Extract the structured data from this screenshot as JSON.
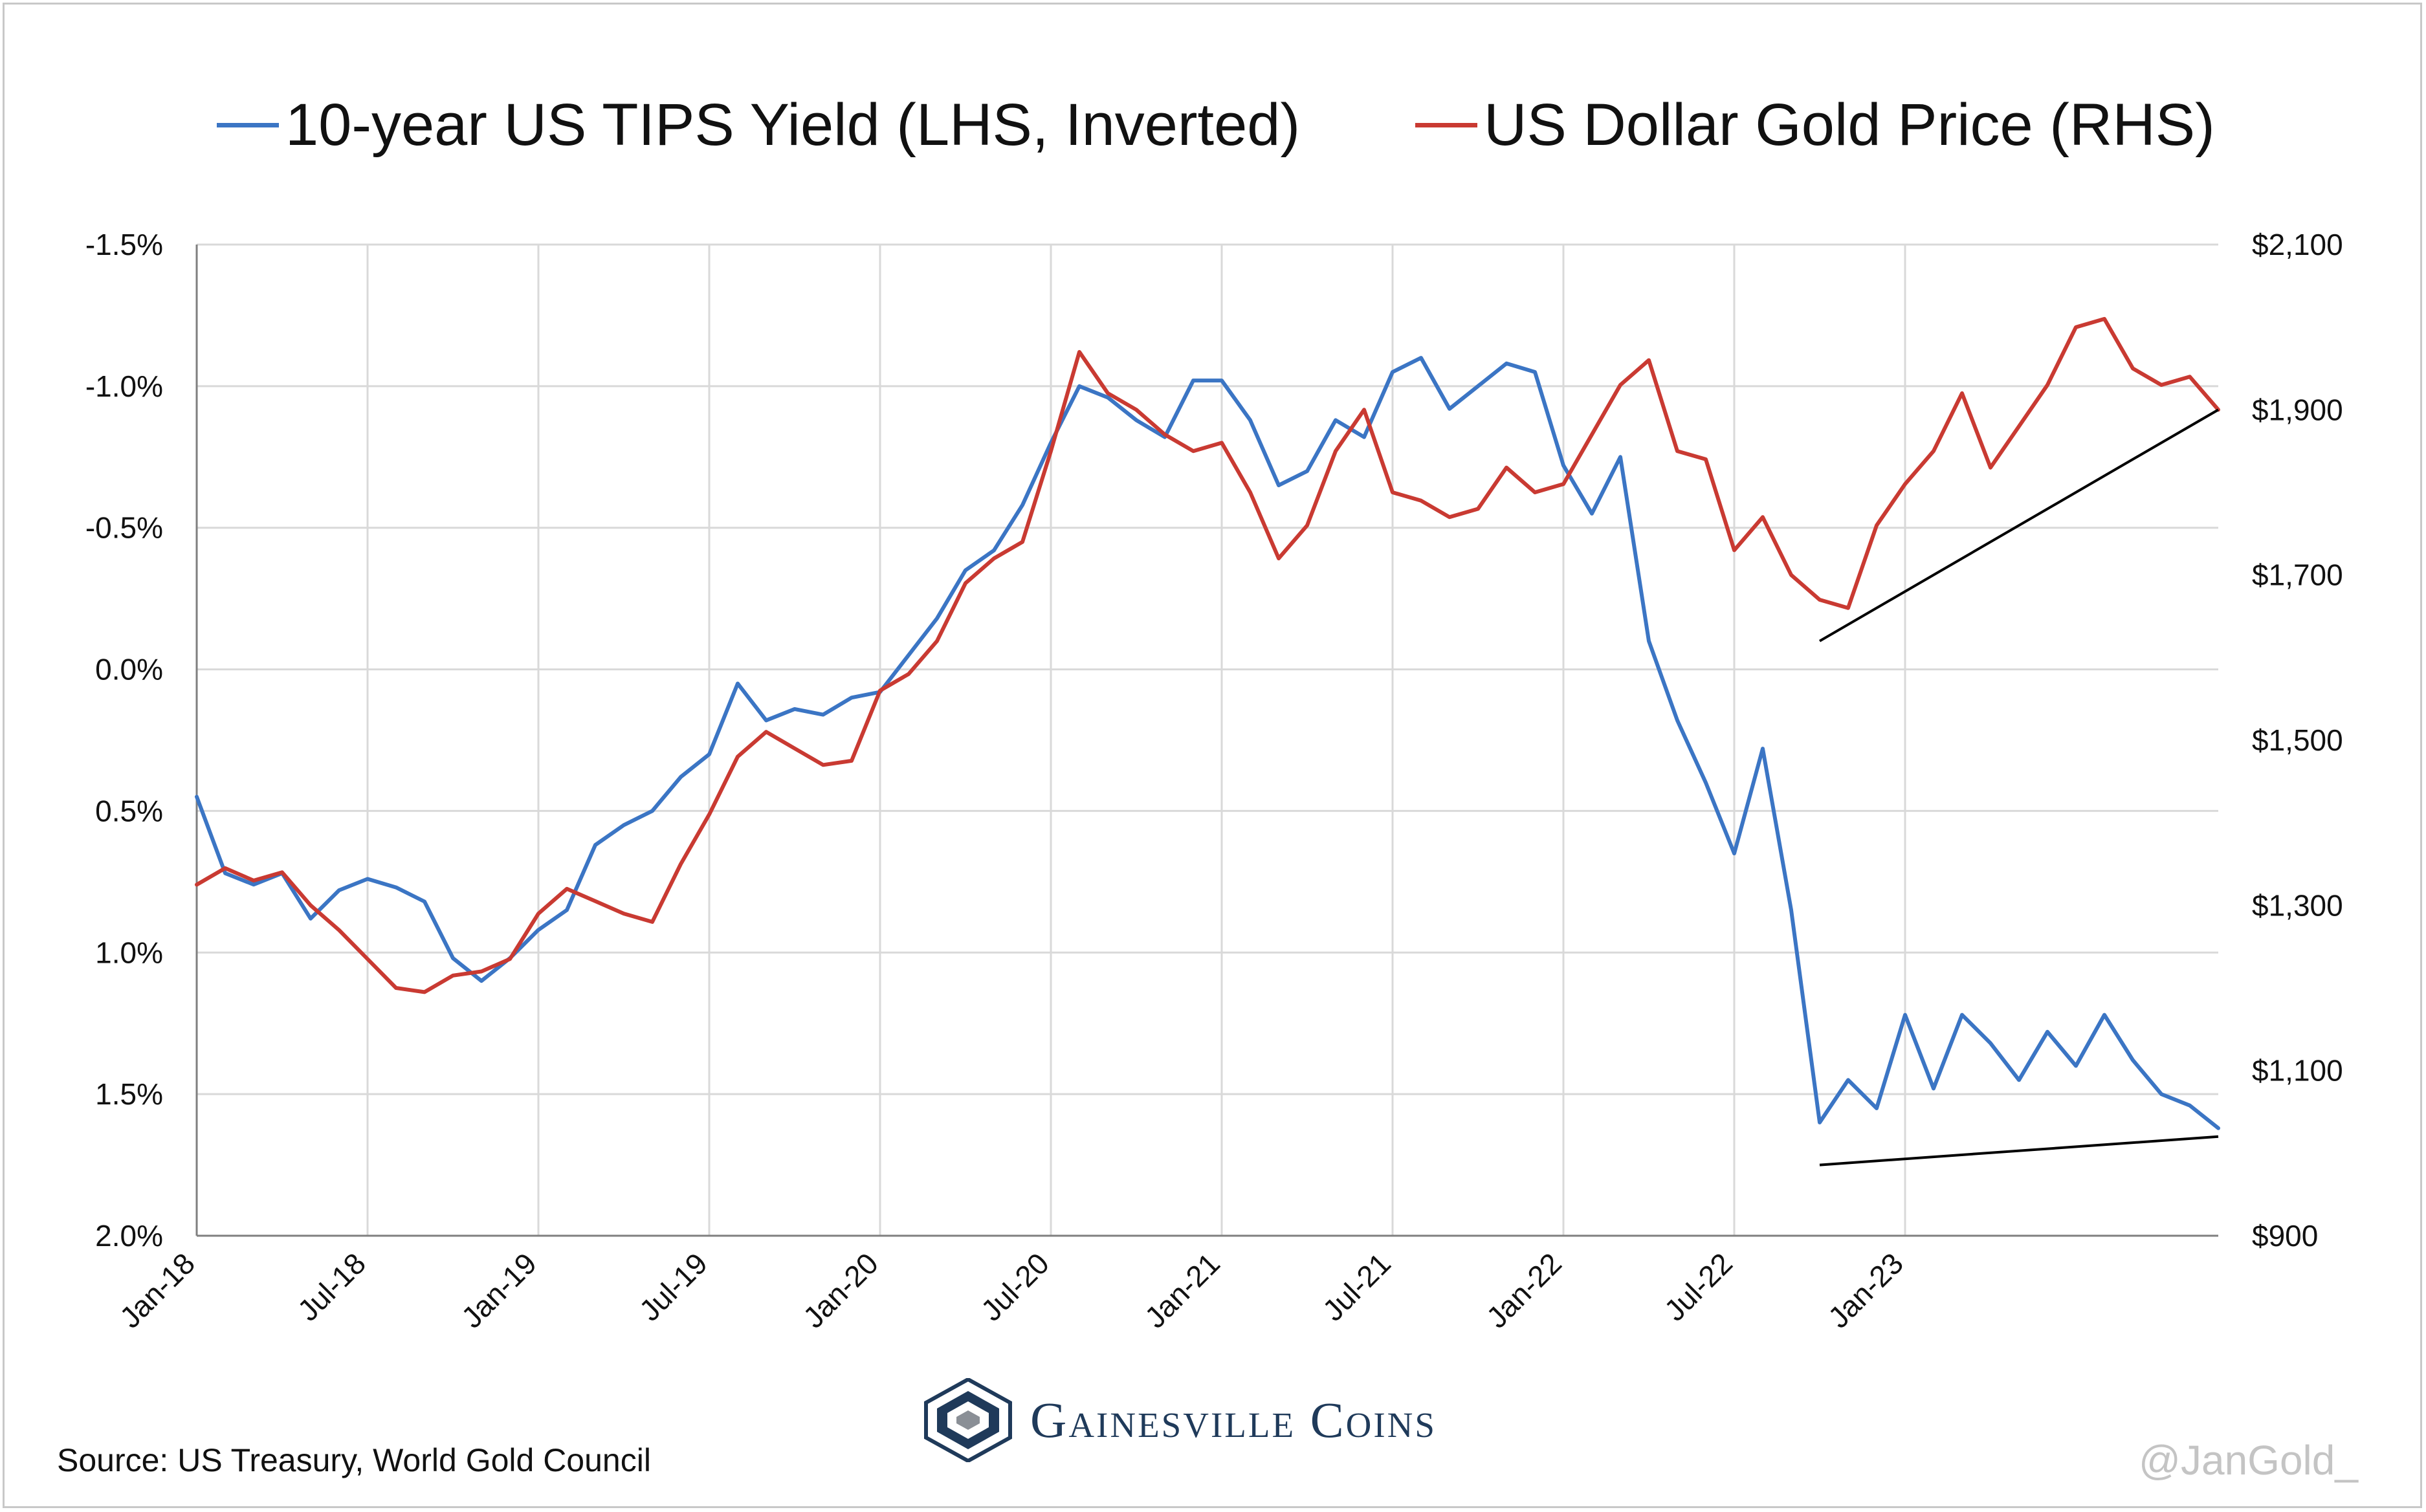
{
  "chart_data": {
    "type": "line",
    "legend": [
      {
        "label": "10-year US TIPS Yield (LHS, Inverted)",
        "color": "#3b75c4"
      },
      {
        "label": "US Dollar Gold Price (RHS)",
        "color": "#c93a32"
      }
    ],
    "left_axis": {
      "ticks": [
        "-1.5%",
        "-1.0%",
        "-0.5%",
        "0.0%",
        "0.5%",
        "1.0%",
        "1.5%",
        "2.0%"
      ],
      "range": [
        -1.5,
        2.0
      ],
      "inverted": true
    },
    "right_axis": {
      "ticks": [
        "$2,100",
        "$1,900",
        "$1,700",
        "$1,500",
        "$1,300",
        "$1,100",
        "$900"
      ],
      "range": [
        900,
        2100
      ]
    },
    "x_ticks": [
      "Jan-18",
      "Jul-18",
      "Jan-19",
      "Jul-19",
      "Jan-20",
      "Jul-20",
      "Jan-21",
      "Jul-21",
      "Jan-22",
      "Jul-22",
      "Jan-23"
    ],
    "x_range": [
      "Jan-18",
      "Dec-23"
    ],
    "grid": true,
    "series": [
      {
        "name": "10-year US TIPS Yield (LHS, Inverted)",
        "axis": "left",
        "color": "#3b75c4",
        "points": [
          [
            "Jan-18",
            0.45
          ],
          [
            "Feb-18",
            0.72
          ],
          [
            "Mar-18",
            0.76
          ],
          [
            "Apr-18",
            0.72
          ],
          [
            "May-18",
            0.88
          ],
          [
            "Jun-18",
            0.78
          ],
          [
            "Jul-18",
            0.74
          ],
          [
            "Aug-18",
            0.77
          ],
          [
            "Sep-18",
            0.82
          ],
          [
            "Oct-18",
            1.02
          ],
          [
            "Nov-18",
            1.1
          ],
          [
            "Dec-18",
            1.02
          ],
          [
            "Jan-19",
            0.92
          ],
          [
            "Feb-19",
            0.85
          ],
          [
            "Mar-19",
            0.62
          ],
          [
            "Apr-19",
            0.55
          ],
          [
            "May-19",
            0.5
          ],
          [
            "Jun-19",
            0.38
          ],
          [
            "Jul-19",
            0.3
          ],
          [
            "Aug-19",
            0.05
          ],
          [
            "Sep-19",
            0.18
          ],
          [
            "Oct-19",
            0.14
          ],
          [
            "Nov-19",
            0.16
          ],
          [
            "Dec-19",
            0.1
          ],
          [
            "Jan-20",
            0.08
          ],
          [
            "Feb-20",
            -0.05
          ],
          [
            "Mar-20",
            -0.18
          ],
          [
            "Apr-20",
            -0.35
          ],
          [
            "May-20",
            -0.42
          ],
          [
            "Jun-20",
            -0.58
          ],
          [
            "Jul-20",
            -0.8
          ],
          [
            "Aug-20",
            -1.0
          ],
          [
            "Sep-20",
            -0.96
          ],
          [
            "Oct-20",
            -0.88
          ],
          [
            "Nov-20",
            -0.82
          ],
          [
            "Dec-20",
            -1.02
          ],
          [
            "Jan-21",
            -1.02
          ],
          [
            "Feb-21",
            -0.88
          ],
          [
            "Mar-21",
            -0.65
          ],
          [
            "Apr-21",
            -0.7
          ],
          [
            "May-21",
            -0.88
          ],
          [
            "Jun-21",
            -0.82
          ],
          [
            "Jul-21",
            -1.05
          ],
          [
            "Aug-21",
            -1.1
          ],
          [
            "Sep-21",
            -0.92
          ],
          [
            "Oct-21",
            -1.0
          ],
          [
            "Nov-21",
            -1.08
          ],
          [
            "Dec-21",
            -1.05
          ],
          [
            "Jan-22",
            -0.72
          ],
          [
            "Feb-22",
            -0.55
          ],
          [
            "Mar-22",
            -0.75
          ],
          [
            "Apr-22",
            -0.1
          ],
          [
            "May-22",
            0.18
          ],
          [
            "Jun-22",
            0.4
          ],
          [
            "Jul-22",
            0.65
          ],
          [
            "Aug-22",
            0.28
          ],
          [
            "Sep-22",
            0.85
          ],
          [
            "Oct-22",
            1.6
          ],
          [
            "Nov-22",
            1.45
          ],
          [
            "Dec-22",
            1.55
          ],
          [
            "Jan-23",
            1.22
          ],
          [
            "Feb-23",
            1.48
          ],
          [
            "Mar-23",
            1.22
          ],
          [
            "Apr-23",
            1.32
          ],
          [
            "May-23",
            1.45
          ],
          [
            "Jun-23",
            1.28
          ],
          [
            "Jul-23",
            1.4
          ],
          [
            "Aug-23",
            1.22
          ],
          [
            "Sep-23",
            1.38
          ],
          [
            "Oct-23",
            1.5
          ],
          [
            "Nov-23",
            1.54
          ],
          [
            "Dec-23",
            1.62
          ]
        ]
      },
      {
        "name": "US Dollar Gold Price (RHS)",
        "axis": "right",
        "color": "#c93a32",
        "points": [
          [
            "Jan-18",
            1325
          ],
          [
            "Feb-18",
            1345
          ],
          [
            "Mar-18",
            1330
          ],
          [
            "Apr-18",
            1340
          ],
          [
            "May-18",
            1300
          ],
          [
            "Jun-18",
            1270
          ],
          [
            "Jul-18",
            1235
          ],
          [
            "Aug-18",
            1200
          ],
          [
            "Sep-18",
            1195
          ],
          [
            "Oct-18",
            1215
          ],
          [
            "Nov-18",
            1220
          ],
          [
            "Dec-18",
            1235
          ],
          [
            "Jan-19",
            1290
          ],
          [
            "Feb-19",
            1320
          ],
          [
            "Mar-19",
            1305
          ],
          [
            "Apr-19",
            1290
          ],
          [
            "May-19",
            1280
          ],
          [
            "Jun-19",
            1350
          ],
          [
            "Jul-19",
            1410
          ],
          [
            "Aug-19",
            1480
          ],
          [
            "Sep-19",
            1510
          ],
          [
            "Oct-19",
            1490
          ],
          [
            "Nov-19",
            1470
          ],
          [
            "Dec-19",
            1475
          ],
          [
            "Jan-20",
            1560
          ],
          [
            "Feb-20",
            1580
          ],
          [
            "Mar-20",
            1620
          ],
          [
            "Apr-20",
            1690
          ],
          [
            "May-20",
            1720
          ],
          [
            "Jun-20",
            1740
          ],
          [
            "Jul-20",
            1850
          ],
          [
            "Aug-20",
            1970
          ],
          [
            "Sep-20",
            1920
          ],
          [
            "Oct-20",
            1900
          ],
          [
            "Nov-20",
            1870
          ],
          [
            "Dec-20",
            1850
          ],
          [
            "Jan-21",
            1860
          ],
          [
            "Feb-21",
            1800
          ],
          [
            "Mar-21",
            1720
          ],
          [
            "Apr-21",
            1760
          ],
          [
            "May-21",
            1850
          ],
          [
            "Jun-21",
            1900
          ],
          [
            "Jul-21",
            1800
          ],
          [
            "Aug-21",
            1790
          ],
          [
            "Sep-21",
            1770
          ],
          [
            "Oct-21",
            1780
          ],
          [
            "Nov-21",
            1830
          ],
          [
            "Dec-21",
            1800
          ],
          [
            "Jan-22",
            1810
          ],
          [
            "Feb-22",
            1870
          ],
          [
            "Mar-22",
            1930
          ],
          [
            "Apr-22",
            1960
          ],
          [
            "May-22",
            1850
          ],
          [
            "Jun-22",
            1840
          ],
          [
            "Jul-22",
            1730
          ],
          [
            "Aug-22",
            1770
          ],
          [
            "Sep-22",
            1700
          ],
          [
            "Oct-22",
            1670
          ],
          [
            "Nov-22",
            1660
          ],
          [
            "Dec-22",
            1760
          ],
          [
            "Jan-23",
            1810
          ],
          [
            "Feb-23",
            1850
          ],
          [
            "Mar-23",
            1920
          ],
          [
            "Apr-23",
            1830
          ],
          [
            "May-23",
            1880
          ],
          [
            "Jun-23",
            1930
          ],
          [
            "Jul-23",
            2000
          ],
          [
            "Aug-23",
            2010
          ],
          [
            "Sep-23",
            1950
          ],
          [
            "Oct-23",
            1930
          ],
          [
            "Nov-23",
            1940
          ],
          [
            "Dec-23",
            1900
          ]
        ]
      }
    ],
    "annotations": [
      {
        "type": "trendline",
        "axis": "right",
        "from": [
          "Oct-22",
          1620
        ],
        "to": [
          "Dec-23",
          1900
        ],
        "color": "#000000"
      },
      {
        "type": "trendline",
        "axis": "left",
        "from": [
          "Oct-22",
          1.75
        ],
        "to": [
          "Dec-23",
          1.65
        ],
        "color": "#000000"
      }
    ]
  },
  "source": "Source: US Treasury, World Gold Council",
  "logo": {
    "text": "Gainesville Coins",
    "icon": "gainesville-coins-logo-icon"
  },
  "watermark": "@JanGold_"
}
